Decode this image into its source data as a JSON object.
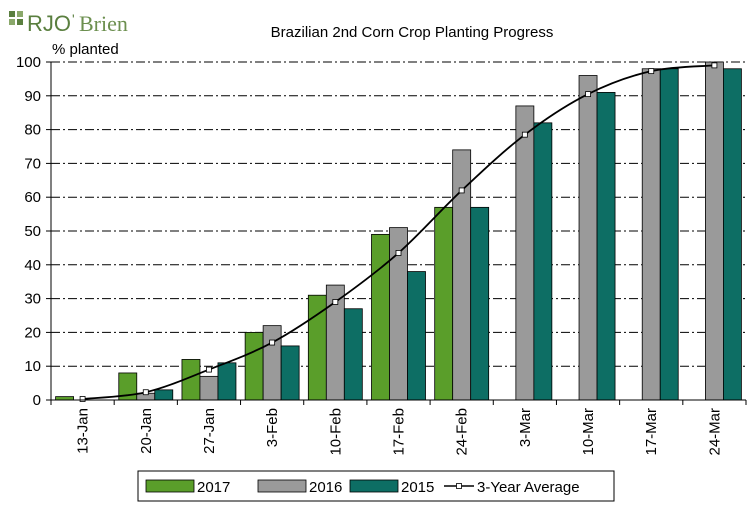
{
  "brand": {
    "logo_text_1": "RJO",
    "logo_text_2": "Brien",
    "logo_mark": "leaf-icon",
    "color": "#5a7f3f"
  },
  "chart_data": {
    "type": "bar",
    "title": "Brazilian 2nd Corn Crop Planting Progress",
    "ylabel": "% planted",
    "xlabel": "",
    "ylim": [
      0,
      100
    ],
    "yticks": [
      0,
      10,
      20,
      30,
      40,
      50,
      60,
      70,
      80,
      90,
      100
    ],
    "grid": "horizontal dash-dot",
    "legend_placement": "bottom",
    "categories": [
      "13-Jan",
      "20-Jan",
      "27-Jan",
      "3-Feb",
      "10-Feb",
      "17-Feb",
      "24-Feb",
      "3-Mar",
      "10-Mar",
      "17-Mar",
      "24-Mar"
    ],
    "series": [
      {
        "name": "2017",
        "color": "#5a9e2a",
        "values": [
          1,
          8,
          12,
          20,
          31,
          49,
          57,
          null,
          null,
          null,
          null
        ]
      },
      {
        "name": "2016",
        "color": "#9a9a9a",
        "values": [
          0,
          2,
          7,
          22,
          34,
          51,
          74,
          87,
          96,
          98,
          100
        ]
      },
      {
        "name": "2015",
        "color": "#0d6e64",
        "values": [
          0,
          3,
          11,
          16,
          27,
          38,
          57,
          82,
          91,
          98,
          98
        ]
      }
    ],
    "line_series": {
      "name": "3-Year Average",
      "color": "#000000",
      "values": [
        0.3,
        2.3,
        9,
        17,
        29,
        43.5,
        62,
        78.5,
        90.5,
        97.3,
        99
      ]
    }
  }
}
